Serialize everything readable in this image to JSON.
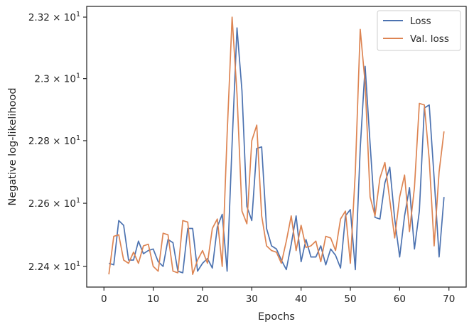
{
  "chart_data": {
    "type": "line",
    "xlabel": "Epochs",
    "ylabel": "Negative log-likelihood",
    "xlim": [
      -3.5,
      73.5
    ],
    "ylim": [
      22.335,
      23.235
    ],
    "yscale": "log",
    "x_ticks": [
      0,
      10,
      20,
      30,
      40,
      50,
      60,
      70
    ],
    "y_ticks": [
      {
        "value": 22.4,
        "mantissa": "2.24",
        "base": "10",
        "exp": "1"
      },
      {
        "value": 22.6,
        "mantissa": "2.26",
        "base": "10",
        "exp": "1"
      },
      {
        "value": 22.8,
        "mantissa": "2.28",
        "base": "10",
        "exp": "1"
      },
      {
        "value": 23.0,
        "mantissa": "2.3",
        "base": "10",
        "exp": "1"
      },
      {
        "value": 23.2,
        "mantissa": "2.32",
        "base": "10",
        "exp": "1"
      }
    ],
    "grid": false,
    "legend_position": "top-right",
    "x": [
      1,
      2,
      3,
      4,
      5,
      6,
      7,
      8,
      9,
      10,
      11,
      12,
      13,
      14,
      15,
      16,
      17,
      18,
      19,
      20,
      21,
      22,
      23,
      24,
      25,
      26,
      27,
      28,
      29,
      30,
      31,
      32,
      33,
      34,
      35,
      36,
      37,
      38,
      39,
      40,
      41,
      42,
      43,
      44,
      45,
      46,
      47,
      48,
      49,
      50,
      51,
      52,
      53,
      54,
      55,
      56,
      57,
      58,
      59,
      60,
      61,
      62,
      63,
      64,
      65,
      66,
      67,
      68,
      69
    ],
    "series": [
      {
        "name": "Loss",
        "color": "#4c72b0",
        "values": [
          22.41,
          22.405,
          22.545,
          22.53,
          22.42,
          22.42,
          22.48,
          22.44,
          22.45,
          22.455,
          22.415,
          22.4,
          22.485,
          22.475,
          22.385,
          22.38,
          22.52,
          22.52,
          22.385,
          22.41,
          22.425,
          22.395,
          22.525,
          22.565,
          22.385,
          22.79,
          23.165,
          22.96,
          22.59,
          22.545,
          22.775,
          22.78,
          22.52,
          22.465,
          22.455,
          22.42,
          22.39,
          22.47,
          22.56,
          22.415,
          22.485,
          22.43,
          22.43,
          22.465,
          22.405,
          22.455,
          22.435,
          22.395,
          22.56,
          22.58,
          22.39,
          22.775,
          23.04,
          22.79,
          22.555,
          22.55,
          22.665,
          22.715,
          22.55,
          22.43,
          22.56,
          22.65,
          22.455,
          22.575,
          22.905,
          22.915,
          22.68,
          22.43,
          22.62
        ]
      },
      {
        "name": "Val. loss",
        "color": "#dd8452",
        "values": [
          22.375,
          22.495,
          22.5,
          22.42,
          22.41,
          22.445,
          22.41,
          22.465,
          22.47,
          22.4,
          22.385,
          22.505,
          22.5,
          22.385,
          22.38,
          22.545,
          22.54,
          22.375,
          22.42,
          22.45,
          22.41,
          22.52,
          22.55,
          22.4,
          22.82,
          23.2,
          22.95,
          22.575,
          22.535,
          22.8,
          22.85,
          22.56,
          22.465,
          22.45,
          22.445,
          22.41,
          22.48,
          22.56,
          22.45,
          22.53,
          22.46,
          22.465,
          22.48,
          22.415,
          22.495,
          22.49,
          22.45,
          22.55,
          22.575,
          22.41,
          22.7,
          23.16,
          22.985,
          22.62,
          22.56,
          22.68,
          22.73,
          22.61,
          22.49,
          22.62,
          22.69,
          22.51,
          22.65,
          22.92,
          22.915,
          22.74,
          22.465,
          22.7,
          22.83
        ]
      }
    ]
  }
}
